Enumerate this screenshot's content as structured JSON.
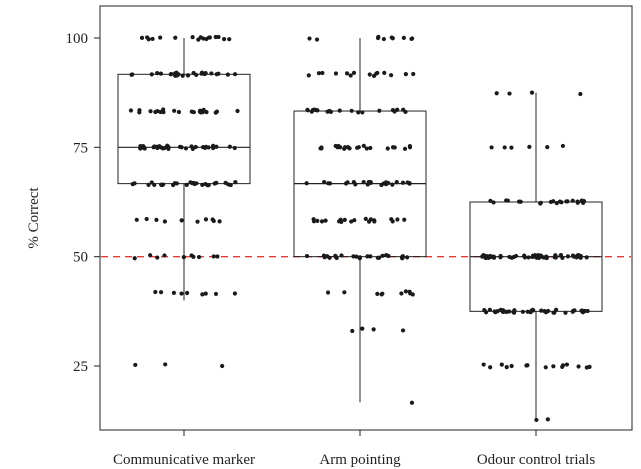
{
  "chart_data": {
    "type": "box",
    "title": "",
    "xlabel": "",
    "ylabel": "% Correct",
    "ylim": [
      10,
      104
    ],
    "yticks": [
      25,
      50,
      75,
      100
    ],
    "y_tick_labels": [
      "25",
      "50",
      "75",
      "100"
    ],
    "categories": [
      "Communicative marker",
      "Arm pointing",
      "Odour control trials"
    ],
    "reference_line": {
      "y": 50,
      "style": "dashed",
      "color": "#e53935"
    },
    "grid": false,
    "box_stats": [
      {
        "category": "Communicative marker",
        "whisker_low": 40,
        "q1": 66.7,
        "median": 75,
        "q3": 91.7,
        "whisker_high": 100
      },
      {
        "category": "Arm pointing",
        "whisker_low": 16.7,
        "q1": 50,
        "median": 66.7,
        "q3": 83.3,
        "whisker_high": 100
      },
      {
        "category": "Odour control trials",
        "whisker_low": 12.5,
        "q1": 37.5,
        "median": 50,
        "q3": 62.5,
        "whisker_high": 87.5
      }
    ],
    "points": [
      [
        100,
        100,
        100,
        100,
        100,
        100,
        100,
        100,
        100,
        100,
        100,
        100,
        100,
        100,
        100,
        100,
        100,
        91.7,
        91.7,
        91.7,
        91.7,
        91.7,
        91.7,
        91.7,
        91.7,
        91.7,
        91.7,
        91.7,
        91.7,
        91.7,
        91.7,
        91.7,
        91.7,
        91.7,
        91.7,
        91.7,
        91.7,
        91.7,
        91.7,
        91.7,
        91.7,
        91.7,
        91.7,
        91.7,
        83.3,
        83.3,
        83.3,
        83.3,
        83.3,
        83.3,
        83.3,
        83.3,
        83.3,
        83.3,
        83.3,
        83.3,
        83.3,
        83.3,
        83.3,
        83.3,
        83.3,
        83.3,
        83.3,
        83.3,
        83.3,
        83.3,
        83.3,
        75,
        75,
        75,
        75,
        75,
        75,
        75,
        75,
        75,
        75,
        75,
        75,
        75,
        75,
        75,
        75,
        75,
        75,
        75,
        75,
        75,
        75,
        75,
        75,
        75,
        75,
        75,
        75,
        75,
        75,
        75,
        75,
        66.7,
        66.7,
        66.7,
        66.7,
        66.7,
        66.7,
        66.7,
        66.7,
        66.7,
        66.7,
        66.7,
        66.7,
        66.7,
        66.7,
        66.7,
        66.7,
        66.7,
        66.7,
        66.7,
        66.7,
        66.7,
        66.7,
        66.7,
        66.7,
        66.7,
        66.7,
        66.7,
        58.3,
        58.3,
        58.3,
        58.3,
        58.3,
        58.3,
        58.3,
        58.3,
        58.3,
        58.3,
        50,
        50,
        50,
        50,
        50,
        50,
        50,
        50,
        50,
        50,
        41.7,
        41.7,
        41.7,
        41.7,
        41.7,
        41.7,
        41.7,
        41.7,
        41.7,
        25,
        25,
        25
      ],
      [
        100,
        100,
        100,
        100,
        100,
        100,
        100,
        100,
        100,
        100,
        91.7,
        91.7,
        91.7,
        91.7,
        91.7,
        91.7,
        91.7,
        91.7,
        91.7,
        91.7,
        91.7,
        91.7,
        91.7,
        91.7,
        91.7,
        83.3,
        83.3,
        83.3,
        83.3,
        83.3,
        83.3,
        83.3,
        83.3,
        83.3,
        83.3,
        83.3,
        83.3,
        83.3,
        83.3,
        83.3,
        83.3,
        83.3,
        83.3,
        83.3,
        83.3,
        75,
        75,
        75,
        75,
        75,
        75,
        75,
        75,
        75,
        75,
        75,
        75,
        75,
        75,
        75,
        75,
        75,
        75,
        75,
        75,
        75,
        75,
        75,
        66.7,
        66.7,
        66.7,
        66.7,
        66.7,
        66.7,
        66.7,
        66.7,
        66.7,
        66.7,
        66.7,
        66.7,
        66.7,
        66.7,
        66.7,
        66.7,
        66.7,
        66.7,
        66.7,
        66.7,
        66.7,
        66.7,
        66.7,
        66.7,
        66.7,
        58.3,
        58.3,
        58.3,
        58.3,
        58.3,
        58.3,
        58.3,
        58.3,
        58.3,
        58.3,
        58.3,
        58.3,
        58.3,
        58.3,
        58.3,
        58.3,
        58.3,
        58.3,
        58.3,
        58.3,
        50,
        50,
        50,
        50,
        50,
        50,
        50,
        50,
        50,
        50,
        50,
        50,
        50,
        50,
        50,
        50,
        50,
        50,
        50,
        50,
        50,
        50,
        50,
        50,
        50,
        41.7,
        41.7,
        41.7,
        41.7,
        41.7,
        41.7,
        41.7,
        41.7,
        41.7,
        41.7,
        33.3,
        33.3,
        33.3,
        33.3,
        16.7
      ],
      [
        87.5,
        87.5,
        87.5,
        87.5,
        75,
        75,
        75,
        75,
        75,
        75,
        62.5,
        62.5,
        62.5,
        62.5,
        62.5,
        62.5,
        62.5,
        62.5,
        62.5,
        62.5,
        62.5,
        62.5,
        62.5,
        62.5,
        62.5,
        62.5,
        62.5,
        62.5,
        62.5,
        62.5,
        62.5,
        62.5,
        50,
        50,
        50,
        50,
        50,
        50,
        50,
        50,
        50,
        50,
        50,
        50,
        50,
        50,
        50,
        50,
        50,
        50,
        50,
        50,
        50,
        50,
        50,
        50,
        50,
        50,
        50,
        50,
        50,
        50,
        50,
        50,
        50,
        50,
        50,
        50,
        50,
        50,
        50,
        50,
        50,
        50,
        50,
        50,
        50,
        50,
        50,
        50,
        50,
        50,
        50,
        50,
        50,
        50,
        50,
        50,
        50,
        50,
        37.5,
        37.5,
        37.5,
        37.5,
        37.5,
        37.5,
        37.5,
        37.5,
        37.5,
        37.5,
        37.5,
        37.5,
        37.5,
        37.5,
        37.5,
        37.5,
        37.5,
        37.5,
        37.5,
        37.5,
        37.5,
        37.5,
        37.5,
        37.5,
        37.5,
        37.5,
        37.5,
        37.5,
        37.5,
        37.5,
        37.5,
        37.5,
        37.5,
        37.5,
        37.5,
        37.5,
        37.5,
        37.5,
        25,
        25,
        25,
        25,
        25,
        25,
        25,
        25,
        25,
        25,
        25,
        25,
        25,
        25,
        25,
        12.5,
        12.5
      ]
    ]
  }
}
